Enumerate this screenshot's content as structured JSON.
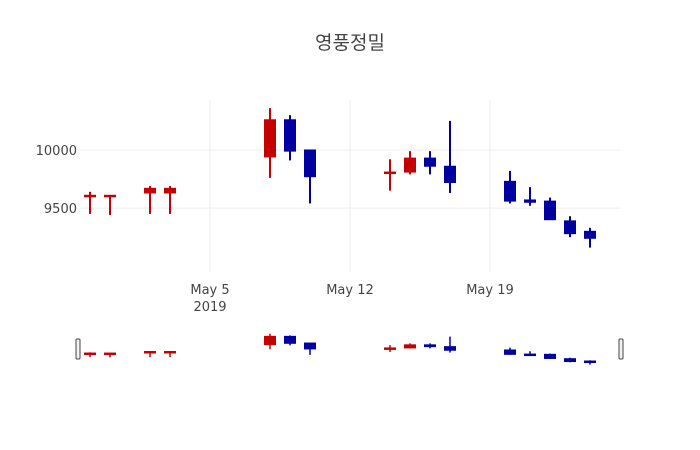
{
  "chart_data": {
    "type": "candlestick",
    "title": "영풍정밀",
    "xlabel": "",
    "ylabel": "",
    "x_tick_labels": [
      {
        "date": "2019-05-05",
        "label": "May 5",
        "sublabel": "2019"
      },
      {
        "date": "2019-05-12",
        "label": "May 12",
        "sublabel": ""
      },
      {
        "date": "2019-05-19",
        "label": "May 19",
        "sublabel": ""
      }
    ],
    "y_ticks": [
      9500,
      10000
    ],
    "y_tick_labels": [
      "9500",
      "10000"
    ],
    "xlim": [
      "2019-04-29",
      "2019-05-25"
    ],
    "ylim": [
      8950,
      10430
    ],
    "grid": true,
    "rangeslider": true,
    "colors": {
      "increasing": "#c40000",
      "decreasing": "#0000a0"
    },
    "series": [
      {
        "date": "2019-04-29",
        "open": 9600,
        "high": 9640,
        "low": 9450,
        "close": 9610
      },
      {
        "date": "2019-04-30",
        "open": 9600,
        "high": 9610,
        "low": 9440,
        "close": 9610
      },
      {
        "date": "2019-05-02",
        "open": 9630,
        "high": 9690,
        "low": 9450,
        "close": 9670
      },
      {
        "date": "2019-05-03",
        "open": 9630,
        "high": 9690,
        "low": 9450,
        "close": 9670
      },
      {
        "date": "2019-05-08",
        "open": 9940,
        "high": 10360,
        "low": 9760,
        "close": 10260
      },
      {
        "date": "2019-05-09",
        "open": 10260,
        "high": 10300,
        "low": 9910,
        "close": 9990
      },
      {
        "date": "2019-05-10",
        "open": 10000,
        "high": 10000,
        "low": 9540,
        "close": 9770
      },
      {
        "date": "2019-05-14",
        "open": 9800,
        "high": 9920,
        "low": 9650,
        "close": 9810
      },
      {
        "date": "2019-05-15",
        "open": 9810,
        "high": 9990,
        "low": 9790,
        "close": 9930
      },
      {
        "date": "2019-05-16",
        "open": 9930,
        "high": 9990,
        "low": 9790,
        "close": 9860
      },
      {
        "date": "2019-05-17",
        "open": 9860,
        "high": 10250,
        "low": 9630,
        "close": 9720
      },
      {
        "date": "2019-05-20",
        "open": 9730,
        "high": 9820,
        "low": 9540,
        "close": 9560
      },
      {
        "date": "2019-05-21",
        "open": 9570,
        "high": 9680,
        "low": 9520,
        "close": 9550
      },
      {
        "date": "2019-05-22",
        "open": 9560,
        "high": 9590,
        "low": 9400,
        "close": 9400
      },
      {
        "date": "2019-05-23",
        "open": 9390,
        "high": 9430,
        "low": 9250,
        "close": 9280
      },
      {
        "date": "2019-05-24",
        "open": 9300,
        "high": 9330,
        "low": 9160,
        "close": 9240
      }
    ]
  }
}
